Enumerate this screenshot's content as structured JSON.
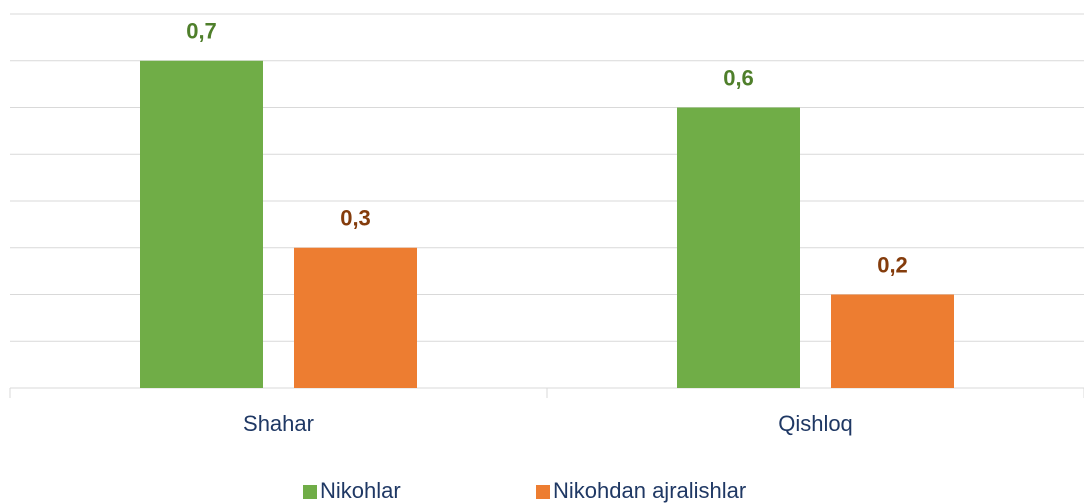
{
  "chart_data": {
    "type": "bar",
    "categories": [
      "Shahar",
      "Qishloq"
    ],
    "series": [
      {
        "name": "Nikohlar",
        "color": "#70ad47",
        "label_color": "#4f7f2b",
        "values": [
          0.7,
          0.6
        ],
        "value_labels": [
          "0,7",
          "0,6"
        ]
      },
      {
        "name": "Nikohdan ajralishlar",
        "color": "#ed7d31",
        "label_color": "#843c0c",
        "values": [
          0.3,
          0.2
        ],
        "value_labels": [
          "0,3",
          "0,2"
        ]
      }
    ],
    "ylim": [
      0,
      0.8
    ],
    "yticks": [
      0,
      0.1,
      0.2,
      0.3,
      0.4,
      0.5,
      0.6,
      0.7,
      0.8
    ],
    "grid": true,
    "legend": "bottom"
  }
}
